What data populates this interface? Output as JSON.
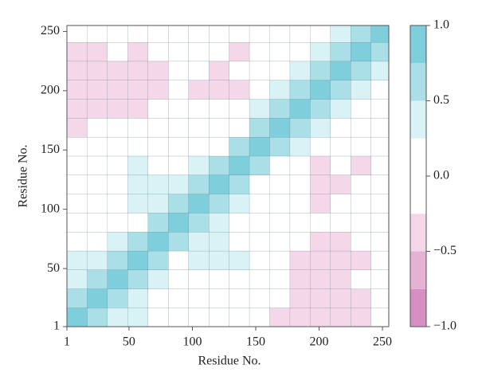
{
  "chart_data": {
    "type": "heatmap",
    "xlabel": "Residue No.",
    "ylabel": "Residue No.",
    "x_edges": [
      1,
      17,
      33,
      49,
      65,
      81,
      97,
      113,
      129,
      145,
      161,
      177,
      193,
      209,
      225,
      241,
      255
    ],
    "y_edges": [
      1,
      17,
      33,
      49,
      65,
      81,
      97,
      113,
      129,
      145,
      161,
      177,
      193,
      209,
      225,
      241,
      255
    ],
    "xlim": [
      1,
      255
    ],
    "ylim": [
      1,
      255
    ],
    "xticks": [
      1,
      50,
      100,
      150,
      200,
      250
    ],
    "yticks": [
      1,
      50,
      100,
      150,
      200,
      250
    ],
    "z": [
      [
        1,
        0.6,
        0.4,
        0.3,
        0.1,
        0,
        0,
        -0.1,
        -0.1,
        0,
        -0.3,
        -0.4,
        -0.3,
        -0.4,
        -0.3,
        0
      ],
      [
        0.6,
        1,
        0.6,
        0.3,
        0.1,
        0,
        0,
        0,
        -0.1,
        0,
        -0.2,
        -0.3,
        -0.4,
        -0.3,
        -0.3,
        0
      ],
      [
        0.4,
        0.6,
        1,
        0.5,
        0.3,
        0.1,
        0.2,
        0.2,
        0.1,
        0,
        -0.2,
        -0.3,
        -0.3,
        -0.4,
        -0.2,
        0
      ],
      [
        0.3,
        0.3,
        0.5,
        1,
        0.6,
        0.2,
        0.3,
        0.4,
        0.3,
        0,
        -0.1,
        -0.3,
        -0.4,
        -0.5,
        -0.3,
        0
      ],
      [
        0.1,
        0.1,
        0.3,
        0.6,
        1,
        0.5,
        0.3,
        0.3,
        0.2,
        0.1,
        0,
        -0.2,
        -0.3,
        -0.3,
        -0.2,
        0
      ],
      [
        0,
        0,
        0.1,
        0.2,
        0.5,
        1,
        0.5,
        0.3,
        0.2,
        0.1,
        0,
        0,
        -0.2,
        -0.2,
        0,
        0
      ],
      [
        0,
        0,
        0.2,
        0.3,
        0.3,
        0.5,
        1,
        0.6,
        0.4,
        0.1,
        0,
        0,
        -0.3,
        -0.2,
        -0.1,
        0
      ],
      [
        -0.1,
        0,
        0.2,
        0.4,
        0.3,
        0.3,
        0.6,
        1,
        0.6,
        0.2,
        0,
        0,
        -0.3,
        -0.3,
        -0.1,
        0.2
      ],
      [
        -0.1,
        -0.1,
        0.1,
        0.3,
        0.2,
        0.2,
        0.4,
        0.6,
        1,
        0.5,
        0.1,
        0,
        -0.3,
        -0.2,
        -0.3,
        0
      ],
      [
        0,
        0,
        0,
        0,
        0.1,
        0.1,
        0.1,
        0.2,
        0.5,
        1,
        0.6,
        0.3,
        0.2,
        0,
        0,
        0
      ],
      [
        -0.3,
        -0.2,
        -0.2,
        -0.1,
        0,
        0,
        0,
        0,
        0.1,
        0.6,
        1,
        0.6,
        0.3,
        0.1,
        0,
        0
      ],
      [
        -0.4,
        -0.3,
        -0.3,
        -0.3,
        -0.2,
        0,
        0,
        0,
        0,
        0.3,
        0.6,
        1,
        0.6,
        0.3,
        0.1,
        0
      ],
      [
        -0.3,
        -0.4,
        -0.3,
        -0.4,
        -0.3,
        -0.2,
        -0.3,
        -0.3,
        -0.3,
        0.2,
        0.3,
        0.6,
        1,
        0.6,
        0.3,
        0.2
      ],
      [
        -0.4,
        -0.3,
        -0.4,
        -0.5,
        -0.3,
        -0.2,
        -0.2,
        -0.3,
        -0.2,
        0,
        0.1,
        0.3,
        0.6,
        1,
        0.6,
        0.3
      ],
      [
        -0.3,
        -0.3,
        -0.2,
        -0.3,
        -0.2,
        0,
        -0.1,
        -0.1,
        -0.3,
        0,
        0,
        0.1,
        0.3,
        0.6,
        1,
        0.6
      ],
      [
        0,
        0,
        0,
        0,
        0,
        0,
        0,
        0.2,
        0,
        0,
        0,
        0,
        0.2,
        0.3,
        0.6,
        1
      ]
    ],
    "levels": [
      -1,
      -0.75,
      -0.5,
      -0.25,
      0.25,
      0.5,
      0.75,
      1
    ],
    "colors": [
      "#d58fc1",
      "#e5b2d6",
      "#f4d8ea",
      "#ffffff",
      "#d9f2f5",
      "#aadfe7",
      "#7ecfdb"
    ],
    "clim": [
      -1,
      1
    ],
    "cticks": [
      {
        "value": -1,
        "label": "−1.0"
      },
      {
        "value": -0.5,
        "label": "−0.5"
      },
      {
        "value": 0,
        "label": "0.0"
      },
      0.5,
      {
        "value": 1,
        "label": "1.0"
      }
    ]
  }
}
